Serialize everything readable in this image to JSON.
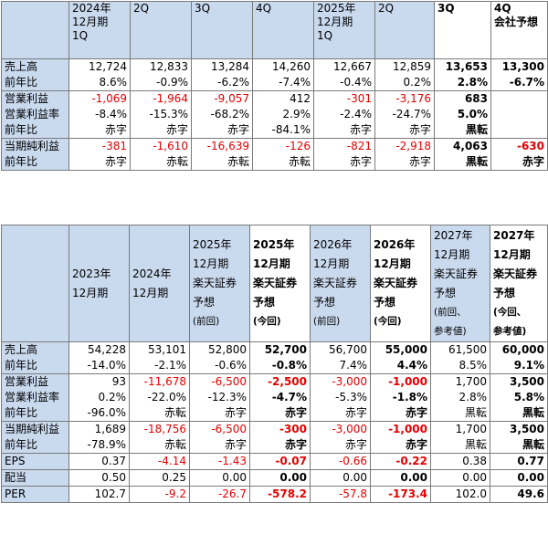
{
  "table1": {
    "headers": [
      [
        "2024年",
        "12月期",
        "1Q"
      ],
      [
        "2Q"
      ],
      [
        "3Q"
      ],
      [
        "4Q"
      ],
      [
        "2025年",
        "12月期",
        "1Q"
      ],
      [
        "2Q"
      ],
      [
        "3Q"
      ],
      [
        "4Q",
        "会社予想"
      ]
    ],
    "rows": [
      {
        "labels": [
          "売上高",
          "前年比"
        ],
        "cells": [
          [
            "12,724",
            "8.6%"
          ],
          [
            "12,833",
            "-0.9%"
          ],
          [
            "13,284",
            "-6.2%"
          ],
          [
            "14,260",
            "-7.4%"
          ],
          [
            "12,667",
            "-0.4%"
          ],
          [
            "12,859",
            "0.2%"
          ],
          [
            "13,653",
            "2.8%"
          ],
          [
            "13,300",
            "-6.7%"
          ]
        ]
      },
      {
        "labels": [
          "営業利益",
          "営業利益率",
          "前年比"
        ],
        "cells": [
          [
            "-1,069",
            "-8.4%",
            "赤字"
          ],
          [
            "-1,964",
            "-15.3%",
            "赤字"
          ],
          [
            "-9,057",
            "-68.2%",
            "赤字"
          ],
          [
            "412",
            "2.9%",
            "-84.1%"
          ],
          [
            "-301",
            "-2.4%",
            "赤字"
          ],
          [
            "-3,176",
            "-24.7%",
            "赤字"
          ],
          [
            "683",
            "5.0%",
            "黒転"
          ],
          [
            "",
            "",
            ""
          ]
        ]
      },
      {
        "labels": [
          "当期純利益",
          "前年比"
        ],
        "cells": [
          [
            "-381",
            "赤字"
          ],
          [
            "-1,610",
            "赤転"
          ],
          [
            "-16,639",
            "赤転"
          ],
          [
            "-126",
            "赤転"
          ],
          [
            "-821",
            "赤字"
          ],
          [
            "-2,918",
            "赤字"
          ],
          [
            "4,063",
            "黒転"
          ],
          [
            "-630",
            "赤字"
          ]
        ]
      }
    ]
  },
  "table2": {
    "headers": [
      [
        "2023年",
        "12月期"
      ],
      [
        "2024年",
        "12月期"
      ],
      [
        "2025年",
        "12月期",
        "楽天証券",
        "予想",
        "(前回)"
      ],
      [
        "2025年",
        "12月期",
        "楽天証券",
        "予想",
        "(今回)"
      ],
      [
        "2026年",
        "12月期",
        "楽天証券",
        "予想",
        "(前回)"
      ],
      [
        "2026年",
        "12月期",
        "楽天証券",
        "予想",
        "(今回)"
      ],
      [
        "2027年",
        "12月期",
        "楽天証券",
        "予想",
        "(前回、",
        "参考値)"
      ],
      [
        "2027年",
        "12月期",
        "楽天証券",
        "予想",
        "(今回、",
        "参考値)"
      ]
    ],
    "rows": [
      {
        "labels": [
          "売上高",
          "前年比"
        ],
        "cells": [
          [
            "54,228",
            "-14.0%"
          ],
          [
            "53,101",
            "-2.1%"
          ],
          [
            "52,800",
            "-0.6%"
          ],
          [
            "52,700",
            "-0.8%"
          ],
          [
            "56,700",
            "7.4%"
          ],
          [
            "55,000",
            "4.4%"
          ],
          [
            "61,500",
            "8.5%"
          ],
          [
            "60,000",
            "9.1%"
          ]
        ]
      },
      {
        "labels": [
          "営業利益",
          "営業利益率",
          "前年比"
        ],
        "cells": [
          [
            "93",
            "0.2%",
            "-96.0%"
          ],
          [
            "-11,678",
            "-22.0%",
            "赤転"
          ],
          [
            "-6,500",
            "-12.3%",
            "赤字"
          ],
          [
            "-2,500",
            "-4.7%",
            "赤字"
          ],
          [
            "-3,000",
            "-5.3%",
            "赤字"
          ],
          [
            "-1,000",
            "-1.8%",
            "赤字"
          ],
          [
            "1,700",
            "2.8%",
            "黒転"
          ],
          [
            "3,500",
            "5.8%",
            "黒転"
          ]
        ]
      },
      {
        "labels": [
          "当期純利益",
          "前年比"
        ],
        "cells": [
          [
            "1,689",
            "-78.9%"
          ],
          [
            "-18,756",
            "赤転"
          ],
          [
            "-6,500",
            "赤字"
          ],
          [
            "-300",
            "赤字"
          ],
          [
            "-3,000",
            "赤字"
          ],
          [
            "-1,000",
            "赤字"
          ],
          [
            "1,700",
            "黒転"
          ],
          [
            "3,500",
            "黒転"
          ]
        ]
      },
      {
        "labels": [
          "EPS"
        ],
        "cells": [
          [
            "0.37"
          ],
          [
            "-4.14"
          ],
          [
            "-1.43"
          ],
          [
            "-0.07"
          ],
          [
            "-0.66"
          ],
          [
            "-0.22"
          ],
          [
            "0.38"
          ],
          [
            "0.77"
          ]
        ]
      },
      {
        "labels": [
          "配当"
        ],
        "cells": [
          [
            "0.50"
          ],
          [
            "0.25"
          ],
          [
            "0.00"
          ],
          [
            "0.00"
          ],
          [
            "0.00"
          ],
          [
            "0.00"
          ],
          [
            "0.00"
          ],
          [
            "0.00"
          ]
        ]
      },
      {
        "labels": [
          "PER"
        ],
        "cells": [
          [
            "102.7"
          ],
          [
            "-9.2"
          ],
          [
            "-26.7"
          ],
          [
            "-578.2"
          ],
          [
            "-57.8"
          ],
          [
            "-173.4"
          ],
          [
            "102.0"
          ],
          [
            "49.6"
          ]
        ]
      }
    ]
  },
  "colors": {
    "header_bg": "#c9d9ee",
    "negative": "#e60000",
    "border": "#7a7a7a"
  }
}
